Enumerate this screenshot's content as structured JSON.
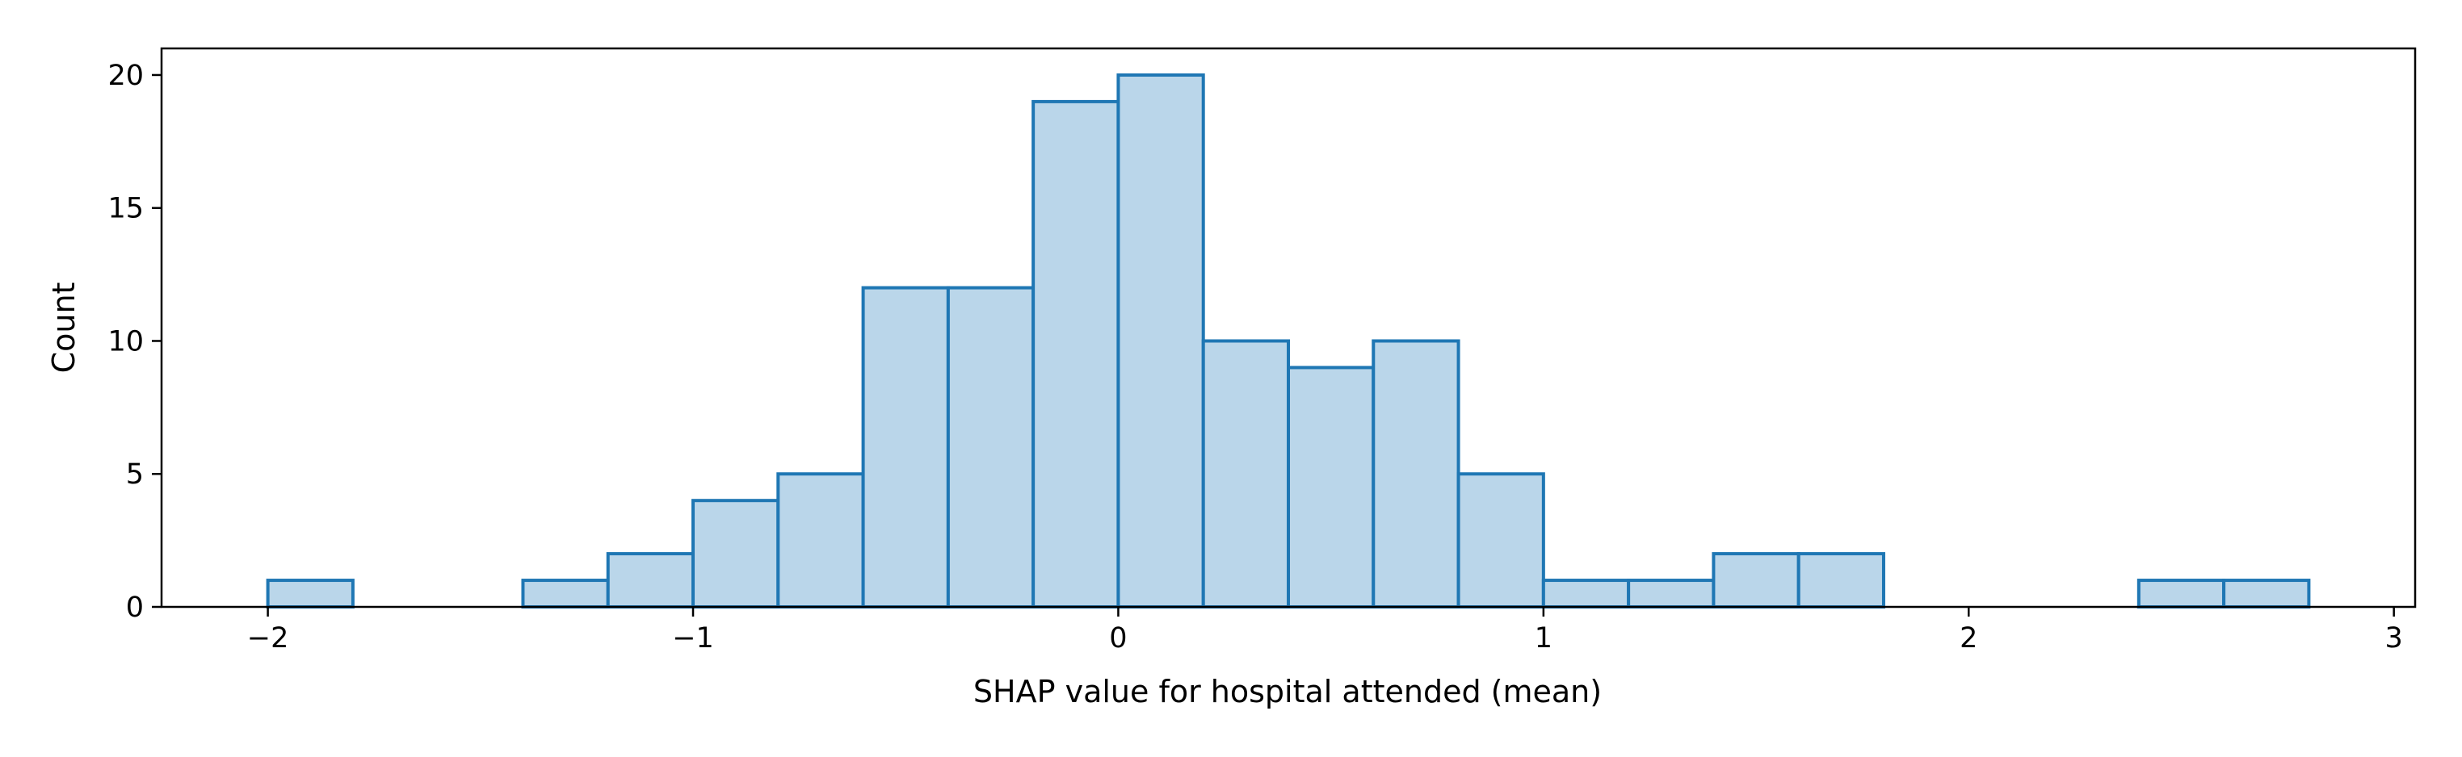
{
  "chart_data": {
    "type": "bar",
    "subtype": "histogram",
    "xlabel": "SHAP value for hospital attended (mean)",
    "ylabel": "Count",
    "xlim": [
      -2.25,
      3.05
    ],
    "ylim": [
      0,
      21
    ],
    "xticks": [
      -2,
      -1,
      0,
      1,
      2,
      3
    ],
    "xtick_labels": [
      "−2",
      "−1",
      "0",
      "1",
      "2",
      "3"
    ],
    "yticks": [
      0,
      5,
      10,
      15,
      20
    ],
    "ytick_labels": [
      "0",
      "5",
      "10",
      "15",
      "20"
    ],
    "bin_edges": [
      -2.0,
      -1.8,
      -1.6,
      -1.4,
      -1.2,
      -1.0,
      -0.8,
      -0.6,
      -0.4,
      -0.2,
      0.0,
      0.2,
      0.4,
      0.6,
      0.8,
      1.0,
      1.2,
      1.4,
      1.6,
      1.8,
      2.0,
      2.2,
      2.4,
      2.6,
      2.8
    ],
    "counts": [
      1,
      0,
      0,
      1,
      2,
      4,
      5,
      12,
      12,
      19,
      20,
      10,
      9,
      10,
      5,
      1,
      1,
      2,
      2,
      0,
      0,
      0,
      1,
      1
    ],
    "grid": false,
    "legend": "none",
    "bar_fill": "#bad6ea",
    "bar_edge": "#1f77b4"
  }
}
